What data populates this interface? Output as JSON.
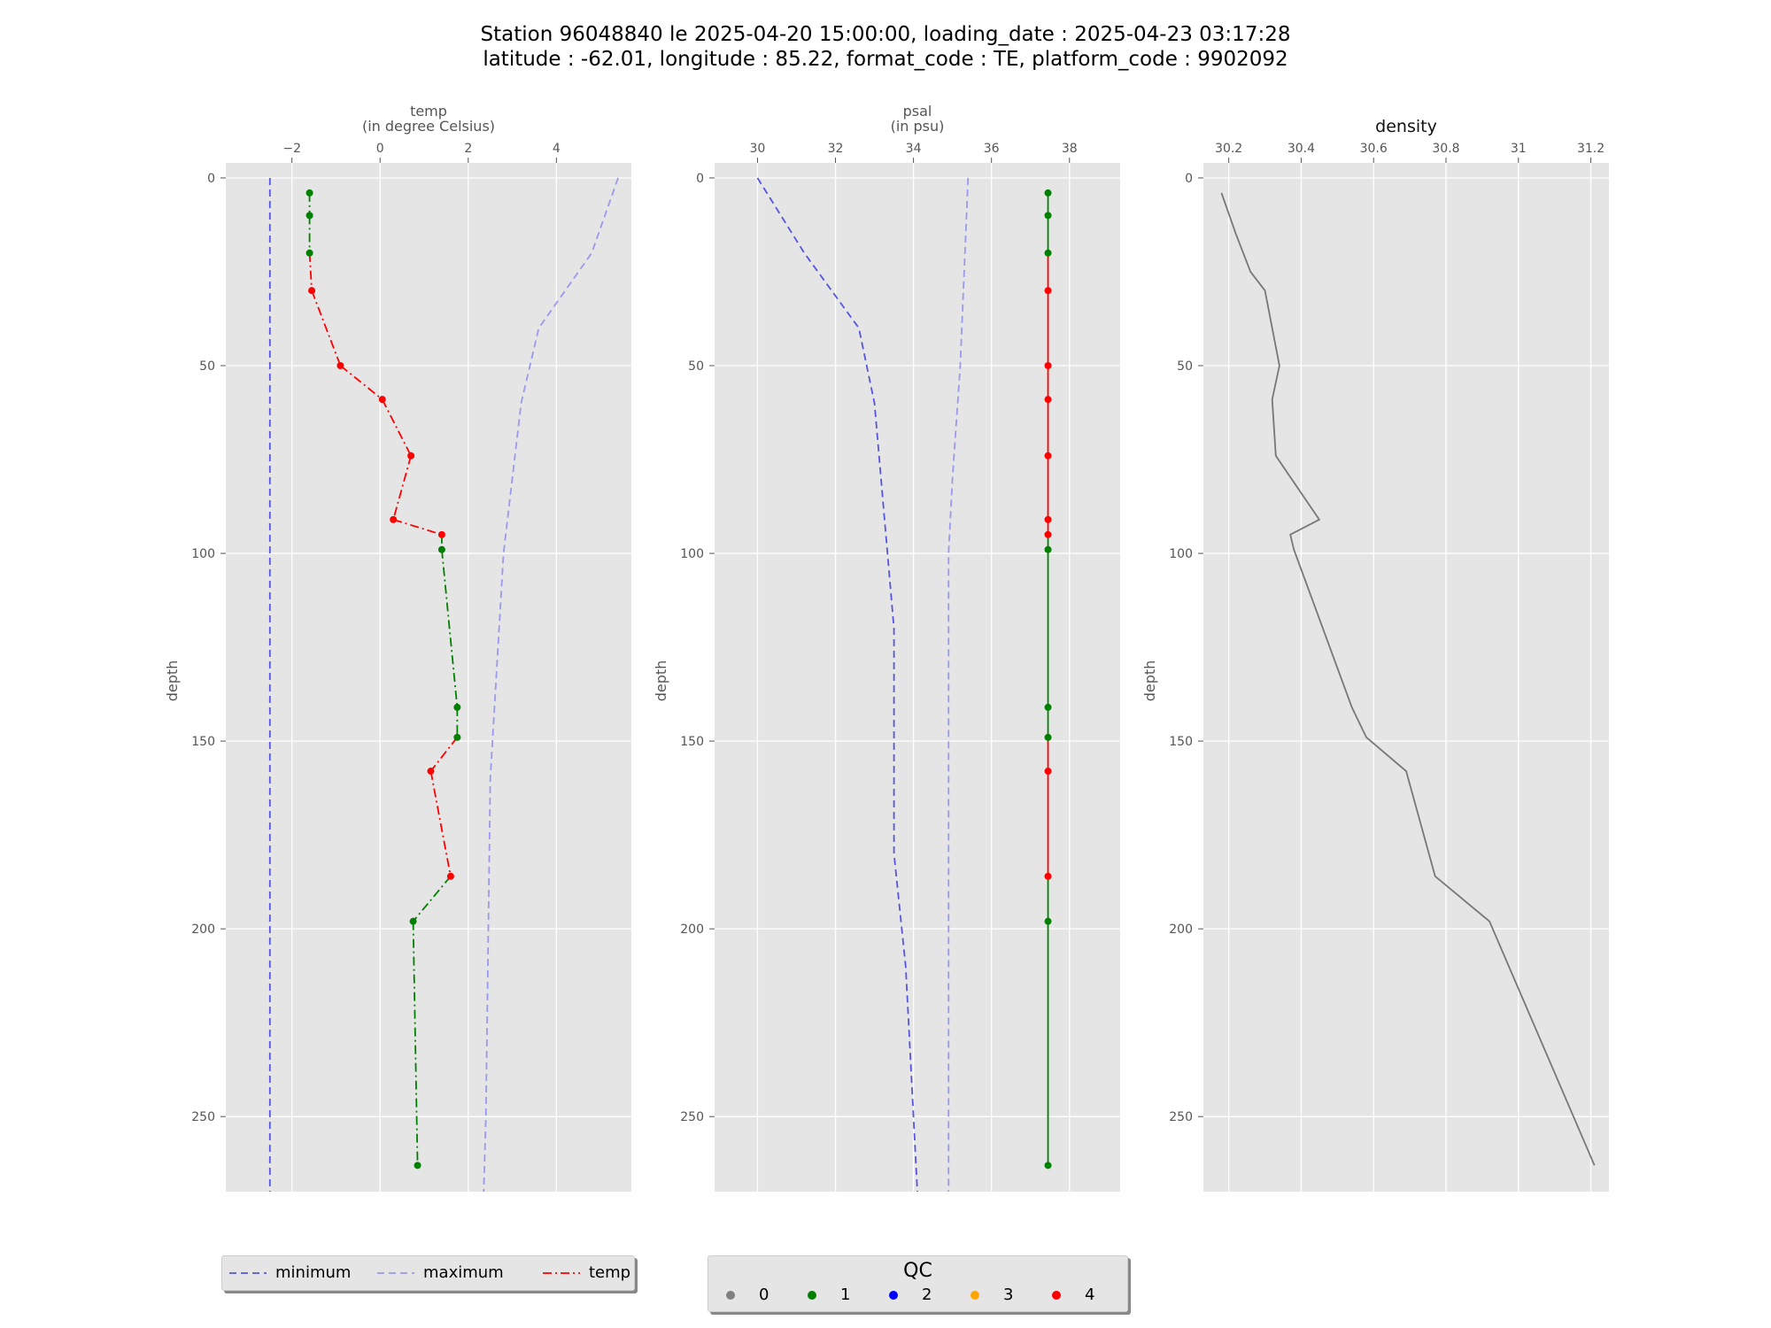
{
  "figure": {
    "title_line1": "Station 96048840 le 2025-04-20 15:00:00, loading_date : 2025-04-23 03:17:28",
    "title_line2": "latitude : -62.01, longitude : 85.22, format_code : TE, platform_code : 9902092"
  },
  "colors": {
    "axes_bg": "#e5e5e5",
    "grid": "#ffffff",
    "minimum": "#5555dd",
    "maximum": "#9999ee",
    "qc0": "#808080",
    "qc1": "#008000",
    "qc2": "#0000ff",
    "qc3": "#ffa500",
    "qc4": "#ff0000",
    "density": "#777777"
  },
  "chart_data": [
    {
      "type": "line",
      "id": "temp",
      "xlabel": "temp\n(in degree Celsius)",
      "ylabel": "depth",
      "xlim": [
        -3.5,
        5.7
      ],
      "xticks": [
        -2,
        0,
        2,
        4
      ],
      "ylim": [
        270,
        -4
      ],
      "yticks": [
        0,
        50,
        100,
        150,
        200,
        250
      ],
      "grid": true,
      "series": [
        {
          "name": "minimum",
          "style": "dashed",
          "points": [
            [
              -2.5,
              0
            ],
            [
              -2.5,
              270
            ]
          ]
        },
        {
          "name": "maximum",
          "style": "dashed",
          "points": [
            [
              5.4,
              0
            ],
            [
              4.8,
              20
            ],
            [
              3.6,
              40
            ],
            [
              3.2,
              60
            ],
            [
              2.8,
              100
            ],
            [
              2.6,
              140
            ],
            [
              2.5,
              160
            ],
            [
              2.4,
              250
            ],
            [
              2.35,
              270
            ]
          ]
        },
        {
          "name": "temp",
          "style": "dashdot",
          "points": [
            [
              -1.6,
              4
            ],
            [
              -1.6,
              10
            ],
            [
              -1.6,
              20
            ],
            [
              -1.55,
              30
            ],
            [
              -0.9,
              50
            ],
            [
              0.05,
              59
            ],
            [
              0.7,
              74
            ],
            [
              0.3,
              91
            ],
            [
              1.4,
              95
            ],
            [
              1.4,
              99
            ],
            [
              1.75,
              141
            ],
            [
              1.75,
              149
            ],
            [
              1.15,
              158
            ],
            [
              1.6,
              186
            ],
            [
              0.75,
              198
            ],
            [
              0.85,
              263
            ]
          ],
          "qc": [
            1,
            1,
            1,
            4,
            4,
            4,
            4,
            4,
            4,
            1,
            1,
            1,
            4,
            4,
            1,
            1
          ]
        }
      ]
    },
    {
      "type": "line",
      "id": "psal",
      "xlabel": "psal\n(in psu)",
      "ylabel": "depth",
      "xlim": [
        28.9,
        39.3
      ],
      "xticks": [
        30,
        32,
        34,
        36,
        38
      ],
      "ylim": [
        270,
        -4
      ],
      "yticks": [
        0,
        50,
        100,
        150,
        200,
        250
      ],
      "grid": true,
      "series": [
        {
          "name": "minimum",
          "style": "dashed",
          "points": [
            [
              30,
              0
            ],
            [
              31.2,
              20
            ],
            [
              32.6,
              40
            ],
            [
              33,
              60
            ],
            [
              33.5,
              120
            ],
            [
              33.5,
              180
            ],
            [
              33.8,
              210
            ],
            [
              34,
              250
            ],
            [
              34.1,
              270
            ]
          ]
        },
        {
          "name": "maximum",
          "style": "dashed",
          "points": [
            [
              35.4,
              0
            ],
            [
              35.2,
              50
            ],
            [
              35.0,
              80
            ],
            [
              34.9,
              100
            ],
            [
              34.9,
              270
            ]
          ]
        },
        {
          "name": "psal",
          "style": "solid",
          "points": [
            [
              37.45,
              4
            ],
            [
              37.45,
              10
            ],
            [
              37.45,
              20
            ],
            [
              37.45,
              30
            ],
            [
              37.45,
              50
            ],
            [
              37.45,
              59
            ],
            [
              37.45,
              74
            ],
            [
              37.45,
              91
            ],
            [
              37.45,
              95
            ],
            [
              37.45,
              99
            ],
            [
              37.45,
              141
            ],
            [
              37.45,
              149
            ],
            [
              37.45,
              158
            ],
            [
              37.45,
              186
            ],
            [
              37.45,
              198
            ],
            [
              37.45,
              263
            ]
          ],
          "qc": [
            1,
            1,
            1,
            4,
            4,
            4,
            4,
            4,
            4,
            1,
            1,
            1,
            4,
            4,
            1,
            1
          ]
        }
      ]
    },
    {
      "type": "line",
      "id": "density",
      "title": "density",
      "ylabel": "depth",
      "xlim": [
        30.13,
        31.25
      ],
      "xticks": [
        30.2,
        30.4,
        30.6,
        30.8,
        31.0,
        31.2
      ],
      "ylim": [
        270,
        -4
      ],
      "yticks": [
        0,
        50,
        100,
        150,
        200,
        250
      ],
      "grid": true,
      "series": [
        {
          "name": "density",
          "style": "solid",
          "points": [
            [
              30.18,
              4
            ],
            [
              30.22,
              15
            ],
            [
              30.26,
              25
            ],
            [
              30.3,
              30
            ],
            [
              30.34,
              50
            ],
            [
              30.32,
              59
            ],
            [
              30.33,
              74
            ],
            [
              30.45,
              91
            ],
            [
              30.37,
              95
            ],
            [
              30.38,
              99
            ],
            [
              30.54,
              141
            ],
            [
              30.58,
              149
            ],
            [
              30.69,
              158
            ],
            [
              30.77,
              186
            ],
            [
              30.92,
              198
            ],
            [
              31.21,
              263
            ]
          ]
        }
      ]
    }
  ],
  "legend_series": {
    "items": [
      {
        "label": "minimum",
        "style": "dashed",
        "color": "#5555dd"
      },
      {
        "label": "maximum",
        "style": "dashed",
        "color": "#9999ee"
      },
      {
        "label": "temp",
        "style": "dashdot",
        "color": "#ff0000"
      }
    ]
  },
  "legend_qc": {
    "title": "QC",
    "items": [
      {
        "label": "0",
        "color": "#808080"
      },
      {
        "label": "1",
        "color": "#008000"
      },
      {
        "label": "2",
        "color": "#0000ff"
      },
      {
        "label": "3",
        "color": "#ffa500"
      },
      {
        "label": "4",
        "color": "#ff0000"
      }
    ]
  }
}
